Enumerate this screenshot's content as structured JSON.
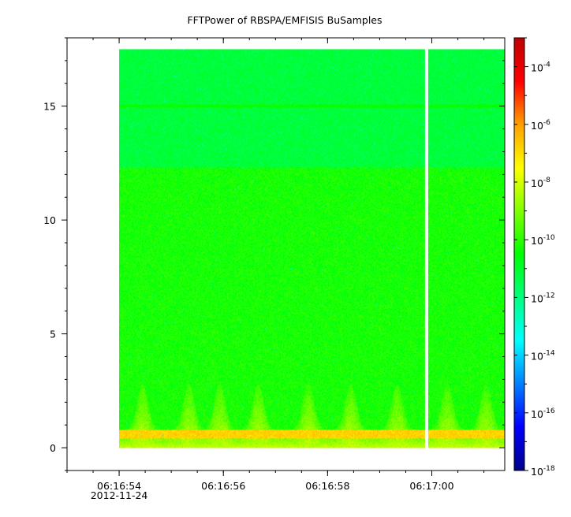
{
  "chart_data": {
    "type": "heatmap",
    "title": "FFTPower of RBSPA/EMFISIS  BuSamples",
    "xlabel": "",
    "ylabel": "",
    "x_ticks": [
      {
        "time": "06:16:54",
        "date": "2012-11-24"
      },
      {
        "time": "06:16:56",
        "date": ""
      },
      {
        "time": "06:16:58",
        "date": ""
      },
      {
        "time": "06:17:00",
        "date": ""
      }
    ],
    "x_range": [
      "06:16:53.0",
      "06:17:01.4"
    ],
    "y_ticks": [
      0,
      5,
      10,
      15
    ],
    "ylim": [
      -1,
      18
    ],
    "data_extent": {
      "x_start": "06:16:54.0",
      "x_end": "06:17:01.4",
      "y_min": 0,
      "y_max": 17.5
    },
    "data_gap_at": "06:16:59.9",
    "colorbar": {
      "scale": "log",
      "range": [
        1e-18,
        0.001
      ],
      "ticks": [
        {
          "base": "10",
          "exp": "-4",
          "value": 0.0001
        },
        {
          "base": "10",
          "exp": "-6",
          "value": 1e-06
        },
        {
          "base": "10",
          "exp": "-8",
          "value": 1e-08
        },
        {
          "base": "10",
          "exp": "-10",
          "value": 1e-10
        },
        {
          "base": "10",
          "exp": "-12",
          "value": 1e-12
        },
        {
          "base": "10",
          "exp": "-14",
          "value": 1e-14
        },
        {
          "base": "10",
          "exp": "-16",
          "value": 1e-16
        },
        {
          "base": "10",
          "exp": "-18",
          "value": 1e-18
        }
      ],
      "colors": [
        "#00008b",
        "#0000ff",
        "#0080ff",
        "#00ffff",
        "#00ff80",
        "#00ff00",
        "#80ff00",
        "#ffff00",
        "#ffa000",
        "#ff0000",
        "#c00000"
      ]
    },
    "features": [
      {
        "label": "strong band",
        "y_range": [
          0.4,
          0.8
        ],
        "power_log10": -6.8
      },
      {
        "label": "low-frequency bursts",
        "y_range": [
          0,
          2.8
        ],
        "power_log10": -8.3
      },
      {
        "label": "horizontal line",
        "y": 15,
        "power_log10": -10.4
      },
      {
        "label": "upper background",
        "y_range": [
          12.3,
          17.5
        ],
        "power_log10": -11.2
      },
      {
        "label": "lower background",
        "y_range": [
          0,
          12.3
        ],
        "power_log10": -10.3
      }
    ]
  }
}
